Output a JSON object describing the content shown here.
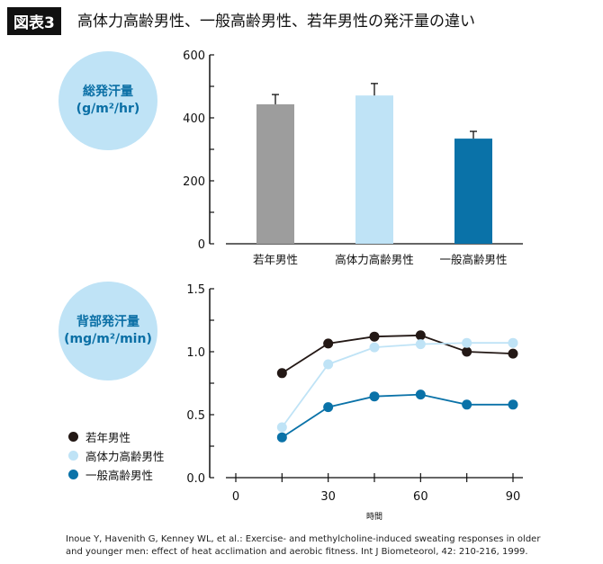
{
  "header": {
    "badge": "図表3",
    "title": "高体力高齢男性、一般高齢男性、若年男性の発汗量の違い"
  },
  "citation": {
    "line1": "Inoue Y, Havenith G, Kenney WL, et al.: Exercise- and methylcholine-induced sweating responses in older",
    "line2": "and younger men: effect of heat acclimation and aerobic fitness. Int J Biometeorol, 42: 210-216, 1999."
  },
  "chart_data": [
    {
      "type": "bar",
      "title_line1": "総発汗量",
      "title_line2": "(g/m²/hr)",
      "categories": [
        "若年男性",
        "高体力高齢男性",
        "一般高齢男性"
      ],
      "values": [
        443,
        471,
        334
      ],
      "error_upper": [
        474,
        509,
        357
      ],
      "colors": [
        "#9d9d9d",
        "#bfe3f6",
        "#0a72a8"
      ],
      "ylim": [
        0,
        600
      ],
      "yticks": [
        0,
        200,
        400,
        600
      ],
      "ytick_labels": [
        "0",
        "200",
        "400",
        "600"
      ]
    },
    {
      "type": "line",
      "title_line1": "背部発汗量",
      "title_line2": "(mg/m²/min)",
      "xlabel": "時間",
      "x": [
        15,
        30,
        45,
        60,
        75,
        90
      ],
      "xlim": [
        0,
        90
      ],
      "xticks": [
        0,
        15,
        30,
        45,
        60,
        75,
        90
      ],
      "xtick_labels": [
        "0",
        "30",
        "60",
        "90"
      ],
      "xtick_label_values": [
        0,
        30,
        60,
        90
      ],
      "ylim": [
        0,
        1.5
      ],
      "yticks": [
        0,
        0.25,
        0.5,
        0.75,
        1.0,
        1.25,
        1.5
      ],
      "ytick_labels": [
        "0.0",
        "0.5",
        "1.0",
        "1.5"
      ],
      "ytick_label_values": [
        0,
        0.5,
        1.0,
        1.5
      ],
      "legend_position": "left",
      "series": [
        {
          "name": "若年男性",
          "color": "#231815",
          "values": [
            0.83,
            1.065,
            1.12,
            1.13,
            1.0,
            0.985
          ]
        },
        {
          "name": "高体力高齢男性",
          "color": "#bfe3f6",
          "values": [
            0.4,
            0.9,
            1.035,
            1.06,
            1.07,
            1.07
          ]
        },
        {
          "name": "一般高齢男性",
          "color": "#0a72a8",
          "values": [
            0.32,
            0.56,
            0.645,
            0.66,
            0.58,
            0.58
          ]
        }
      ]
    }
  ]
}
